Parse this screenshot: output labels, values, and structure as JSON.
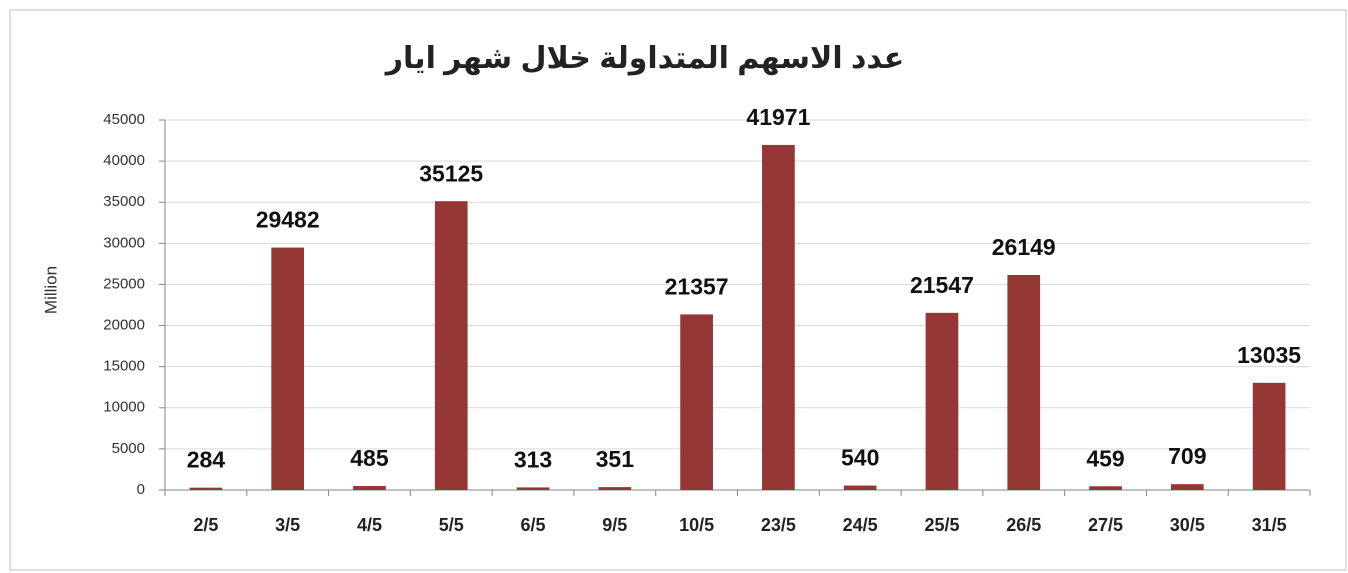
{
  "chart_data": {
    "type": "bar",
    "title": "عدد الاسهم المتداولة خلال شهر ايار",
    "y_label": "Million",
    "categories": [
      "2/5",
      "3/5",
      "4/5",
      "5/5",
      "6/5",
      "9/5",
      "10/5",
      "23/5",
      "24/5",
      "25/5",
      "26/5",
      "27/5",
      "30/5",
      "31/5"
    ],
    "values": [
      284,
      29482,
      485,
      35125,
      313,
      351,
      21357,
      41971,
      540,
      21547,
      26149,
      459,
      709,
      13035
    ],
    "color": "#953735",
    "ylim": [
      0,
      45000
    ],
    "yticks": [
      0,
      5000,
      10000,
      15000,
      20000,
      25000,
      30000,
      35000,
      40000,
      45000
    ],
    "grid": true
  }
}
